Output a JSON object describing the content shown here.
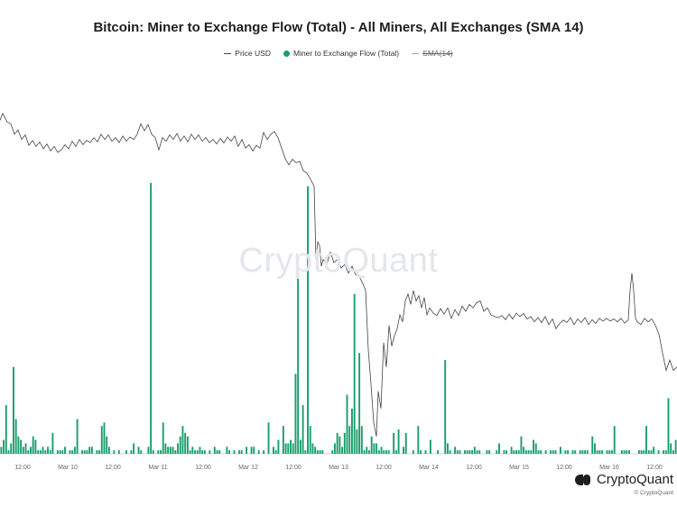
{
  "header": {
    "title": "Bitcoin: Miner to Exchange Flow (Total) - All Miners, All Exchanges (SMA 14)"
  },
  "legend": {
    "items": [
      {
        "label": "Price USD",
        "color": "#444444",
        "style": "line"
      },
      {
        "label": "Miner to Exchange Flow (Total)",
        "color": "#1a9d6b",
        "style": "dot"
      },
      {
        "label": "SMA(14)",
        "color": "#aaaaaa",
        "style": "line-struck"
      }
    ]
  },
  "watermark": "CryptoQuant",
  "brand": {
    "name": "CryptoQuant",
    "copyright": "© CryptoQuant"
  },
  "chart_data": {
    "type": "bar",
    "x_ticks": [
      "12:00",
      "Mar 10",
      "12:00",
      "Mar 11",
      "12:00",
      "Mar 12",
      "12:00",
      "Mar 13",
      "12:00",
      "Mar 14",
      "12:00",
      "Mar 15",
      "12:00",
      "Mar 16",
      "12:00"
    ],
    "colors": {
      "bars": "#1a9d6b",
      "price": "#444444"
    },
    "grid": false,
    "flow_values": [
      2,
      4,
      14,
      1,
      3,
      25,
      10,
      5,
      4,
      2,
      3,
      1,
      2,
      5,
      4,
      1,
      1,
      2,
      1,
      2,
      1,
      6,
      0,
      1,
      1,
      1,
      2,
      0,
      1,
      1,
      2,
      10,
      0,
      1,
      1,
      1,
      2,
      2,
      0,
      1,
      1,
      8,
      9,
      5,
      2,
      0,
      1,
      0,
      1,
      0,
      0,
      1,
      0,
      1,
      3,
      0,
      2,
      1,
      0,
      0,
      2,
      78,
      1,
      0,
      1,
      1,
      9,
      3,
      2,
      2,
      2,
      1,
      3,
      5,
      8,
      6,
      5,
      1,
      2,
      1,
      1,
      2,
      1,
      1,
      0,
      1,
      0,
      2,
      1,
      1,
      0,
      0,
      2,
      1,
      0,
      1,
      0,
      1,
      1,
      0,
      2,
      0,
      2,
      2,
      0,
      1,
      0,
      1,
      0,
      9,
      0,
      2,
      1,
      4,
      0,
      8,
      3,
      3,
      4,
      3,
      23,
      54,
      4,
      14,
      1,
      77,
      8,
      3,
      2,
      1,
      1,
      1,
      0,
      0,
      0,
      1,
      3,
      6,
      5,
      2,
      6,
      17,
      8,
      13,
      46,
      7,
      29,
      8,
      1,
      2,
      1,
      5,
      3,
      3,
      1,
      2,
      1,
      1,
      1,
      0,
      6,
      1,
      7,
      0,
      2,
      6,
      0,
      0,
      1,
      0,
      8,
      1,
      0,
      1,
      0,
      4,
      0,
      0,
      1,
      0,
      0,
      27,
      3,
      1,
      0,
      2,
      1,
      1,
      0,
      1,
      1,
      1,
      1,
      2,
      1,
      1,
      0,
      0,
      1,
      1,
      0,
      0,
      1,
      3,
      0,
      1,
      1,
      0,
      2,
      1,
      1,
      1,
      5,
      2,
      1,
      1,
      1,
      4,
      3,
      1,
      1,
      0,
      1,
      0,
      1,
      1,
      1,
      0,
      2,
      0,
      1,
      1,
      0,
      1,
      1,
      0,
      1,
      1,
      1,
      1,
      0,
      5,
      3,
      1,
      1,
      1,
      0,
      1,
      1,
      1,
      8,
      0,
      0,
      1,
      1,
      1,
      1,
      0,
      0,
      0,
      1,
      1,
      1,
      8,
      1,
      1,
      2,
      0,
      1,
      0,
      1,
      1,
      16,
      3,
      1,
      4
    ],
    "price": [
      [
        0,
        0.96
      ],
      [
        3,
        0.98
      ],
      [
        8,
        0.955
      ],
      [
        12,
        0.95
      ],
      [
        16,
        0.92
      ],
      [
        20,
        0.932
      ],
      [
        24,
        0.905
      ],
      [
        28,
        0.918
      ],
      [
        32,
        0.888
      ],
      [
        36,
        0.902
      ],
      [
        40,
        0.885
      ],
      [
        44,
        0.898
      ],
      [
        48,
        0.878
      ],
      [
        52,
        0.892
      ],
      [
        56,
        0.872
      ],
      [
        60,
        0.885
      ],
      [
        64,
        0.868
      ],
      [
        68,
        0.875
      ],
      [
        72,
        0.89
      ],
      [
        76,
        0.878
      ],
      [
        80,
        0.9
      ],
      [
        84,
        0.885
      ],
      [
        88,
        0.905
      ],
      [
        92,
        0.89
      ],
      [
        96,
        0.902
      ],
      [
        100,
        0.896
      ],
      [
        104,
        0.91
      ],
      [
        108,
        0.898
      ],
      [
        112,
        0.92
      ],
      [
        116,
        0.905
      ],
      [
        120,
        0.918
      ],
      [
        124,
        0.9
      ],
      [
        128,
        0.91
      ],
      [
        132,
        0.896
      ],
      [
        136,
        0.915
      ],
      [
        140,
        0.9
      ],
      [
        144,
        0.912
      ],
      [
        148,
        0.905
      ],
      [
        152,
        0.92
      ],
      [
        156,
        0.95
      ],
      [
        160,
        0.93
      ],
      [
        164,
        0.948
      ],
      [
        168,
        0.92
      ],
      [
        172,
        0.91
      ],
      [
        176,
        0.875
      ],
      [
        180,
        0.91
      ],
      [
        184,
        0.9
      ],
      [
        188,
        0.918
      ],
      [
        192,
        0.905
      ],
      [
        196,
        0.922
      ],
      [
        200,
        0.9
      ],
      [
        204,
        0.915
      ],
      [
        208,
        0.898
      ],
      [
        212,
        0.92
      ],
      [
        216,
        0.905
      ],
      [
        220,
        0.918
      ],
      [
        224,
        0.9
      ],
      [
        228,
        0.91
      ],
      [
        232,
        0.896
      ],
      [
        236,
        0.905
      ],
      [
        240,
        0.892
      ],
      [
        244,
        0.908
      ],
      [
        248,
        0.895
      ],
      [
        252,
        0.912
      ],
      [
        256,
        0.9
      ],
      [
        260,
        0.915
      ],
      [
        264,
        0.885
      ],
      [
        268,
        0.905
      ],
      [
        272,
        0.88
      ],
      [
        276,
        0.89
      ],
      [
        280,
        0.872
      ],
      [
        284,
        0.888
      ],
      [
        288,
        0.88
      ],
      [
        292,
        0.925
      ],
      [
        296,
        0.905
      ],
      [
        300,
        0.92
      ],
      [
        304,
        0.928
      ],
      [
        308,
        0.91
      ],
      [
        312,
        0.88
      ],
      [
        316,
        0.85
      ],
      [
        320,
        0.832
      ],
      [
        324,
        0.848
      ],
      [
        328,
        0.838
      ],
      [
        332,
        0.842
      ],
      [
        336,
        0.815
      ],
      [
        340,
        0.808
      ],
      [
        344,
        0.79
      ],
      [
        348,
        0.77
      ],
      [
        350,
        0.56
      ],
      [
        352,
        0.61
      ],
      [
        354,
        0.6
      ],
      [
        356,
        0.54
      ],
      [
        358,
        0.56
      ],
      [
        362,
        0.545
      ],
      [
        366,
        0.58
      ],
      [
        370,
        0.55
      ],
      [
        374,
        0.56
      ],
      [
        378,
        0.535
      ],
      [
        382,
        0.545
      ],
      [
        386,
        0.52
      ],
      [
        390,
        0.54
      ],
      [
        394,
        0.515
      ],
      [
        398,
        0.51
      ],
      [
        402,
        0.49
      ],
      [
        405,
        0.47
      ],
      [
        408,
        0.3
      ],
      [
        411,
        0.2
      ],
      [
        414,
        0.09
      ],
      [
        417,
        0.05
      ],
      [
        419,
        0.18
      ],
      [
        422,
        0.13
      ],
      [
        425,
        0.32
      ],
      [
        428,
        0.25
      ],
      [
        431,
        0.37
      ],
      [
        434,
        0.31
      ],
      [
        437,
        0.34
      ],
      [
        440,
        0.36
      ],
      [
        443,
        0.4
      ],
      [
        446,
        0.38
      ],
      [
        449,
        0.44
      ],
      [
        452,
        0.46
      ],
      [
        455,
        0.43
      ],
      [
        458,
        0.47
      ],
      [
        461,
        0.44
      ],
      [
        464,
        0.455
      ],
      [
        467,
        0.42
      ],
      [
        470,
        0.45
      ],
      [
        473,
        0.4
      ],
      [
        476,
        0.42
      ],
      [
        480,
        0.405
      ],
      [
        484,
        0.398
      ],
      [
        488,
        0.418
      ],
      [
        492,
        0.402
      ],
      [
        496,
        0.42
      ],
      [
        500,
        0.39
      ],
      [
        504,
        0.415
      ],
      [
        508,
        0.398
      ],
      [
        512,
        0.425
      ],
      [
        516,
        0.41
      ],
      [
        520,
        0.43
      ],
      [
        524,
        0.42
      ],
      [
        528,
        0.435
      ],
      [
        532,
        0.44
      ],
      [
        536,
        0.41
      ],
      [
        540,
        0.42
      ],
      [
        544,
        0.4
      ],
      [
        548,
        0.395
      ],
      [
        552,
        0.392
      ],
      [
        556,
        0.398
      ],
      [
        560,
        0.386
      ],
      [
        564,
        0.402
      ],
      [
        568,
        0.388
      ],
      [
        572,
        0.405
      ],
      [
        576,
        0.395
      ],
      [
        580,
        0.404
      ],
      [
        584,
        0.388
      ],
      [
        588,
        0.395
      ],
      [
        592,
        0.38
      ],
      [
        596,
        0.392
      ],
      [
        600,
        0.378
      ],
      [
        604,
        0.395
      ],
      [
        608,
        0.372
      ],
      [
        612,
        0.388
      ],
      [
        616,
        0.36
      ],
      [
        620,
        0.375
      ],
      [
        624,
        0.385
      ],
      [
        628,
        0.378
      ],
      [
        632,
        0.392
      ],
      [
        636,
        0.372
      ],
      [
        640,
        0.388
      ],
      [
        644,
        0.378
      ],
      [
        648,
        0.392
      ],
      [
        652,
        0.372
      ],
      [
        656,
        0.386
      ],
      [
        660,
        0.375
      ],
      [
        664,
        0.39
      ],
      [
        668,
        0.382
      ],
      [
        672,
        0.39
      ],
      [
        676,
        0.382
      ],
      [
        680,
        0.388
      ],
      [
        684,
        0.38
      ],
      [
        688,
        0.39
      ],
      [
        692,
        0.376
      ],
      [
        696,
        0.385
      ],
      [
        698,
        0.47
      ],
      [
        700,
        0.52
      ],
      [
        702,
        0.47
      ],
      [
        704,
        0.39
      ],
      [
        706,
        0.38
      ],
      [
        710,
        0.372
      ],
      [
        714,
        0.39
      ],
      [
        718,
        0.38
      ],
      [
        722,
        0.388
      ],
      [
        726,
        0.37
      ],
      [
        730,
        0.345
      ],
      [
        734,
        0.29
      ],
      [
        738,
        0.24
      ],
      [
        742,
        0.27
      ],
      [
        746,
        0.24
      ],
      [
        750,
        0.25
      ]
    ]
  }
}
